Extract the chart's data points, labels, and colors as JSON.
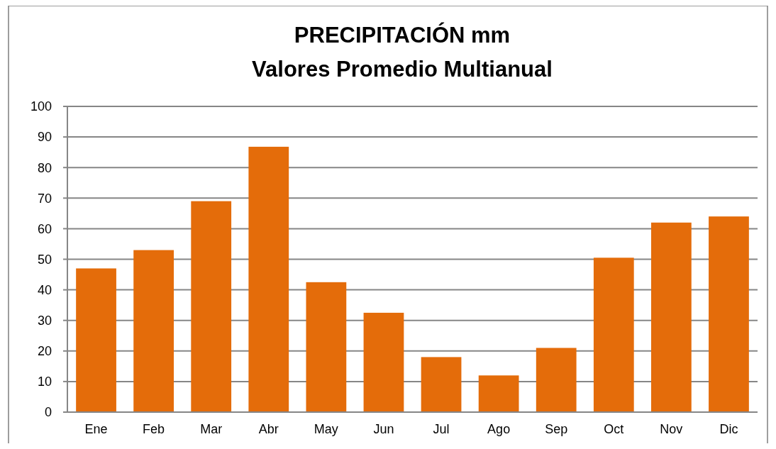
{
  "chart_data": {
    "type": "bar",
    "title": "PRECIPITACIÓN mm\nValores Promedio Multianual",
    "categories": [
      "Ene",
      "Feb",
      "Mar",
      "Abr",
      "May",
      "Jun",
      "Jul",
      "Ago",
      "Sep",
      "Oct",
      "Nov",
      "Dic"
    ],
    "values": [
      47,
      53,
      69,
      86.8,
      42.5,
      32.5,
      18,
      12,
      21,
      50.5,
      62,
      64
    ],
    "color": "#e46c0a",
    "ylim": [
      0,
      100
    ],
    "yticks": [
      0,
      10,
      20,
      30,
      40,
      50,
      60,
      70,
      80,
      90,
      100
    ],
    "grid": "y"
  }
}
